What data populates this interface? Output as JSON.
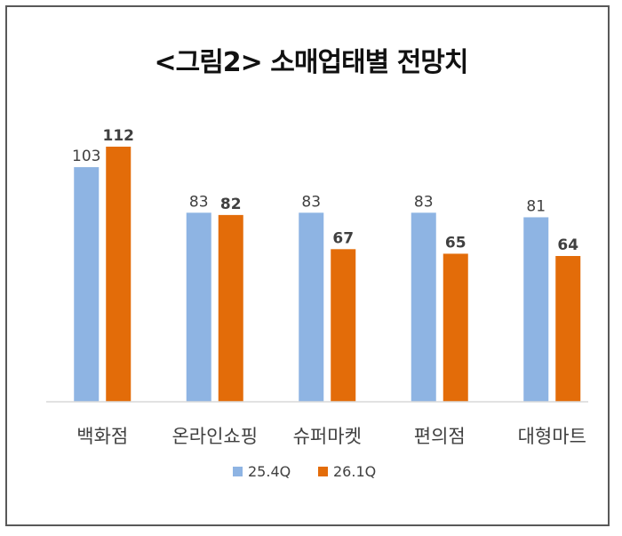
{
  "chart_data": {
    "type": "bar",
    "title": "<그림2> 소매업태별 전망치",
    "categories": [
      "백화점",
      "온라인쇼핑",
      "슈퍼마켓",
      "편의점",
      "대형마트"
    ],
    "series": [
      {
        "name": "25.4Q",
        "values": [
          103,
          83,
          83,
          83,
          81
        ],
        "color": "#8EB4E3",
        "label_bold": false
      },
      {
        "name": "26.1Q",
        "values": [
          112,
          82,
          67,
          65,
          64
        ],
        "color": "#E36C09",
        "label_bold": true
      }
    ],
    "ylim": [
      0,
      112
    ],
    "grid": false,
    "legend_position": "bottom"
  }
}
